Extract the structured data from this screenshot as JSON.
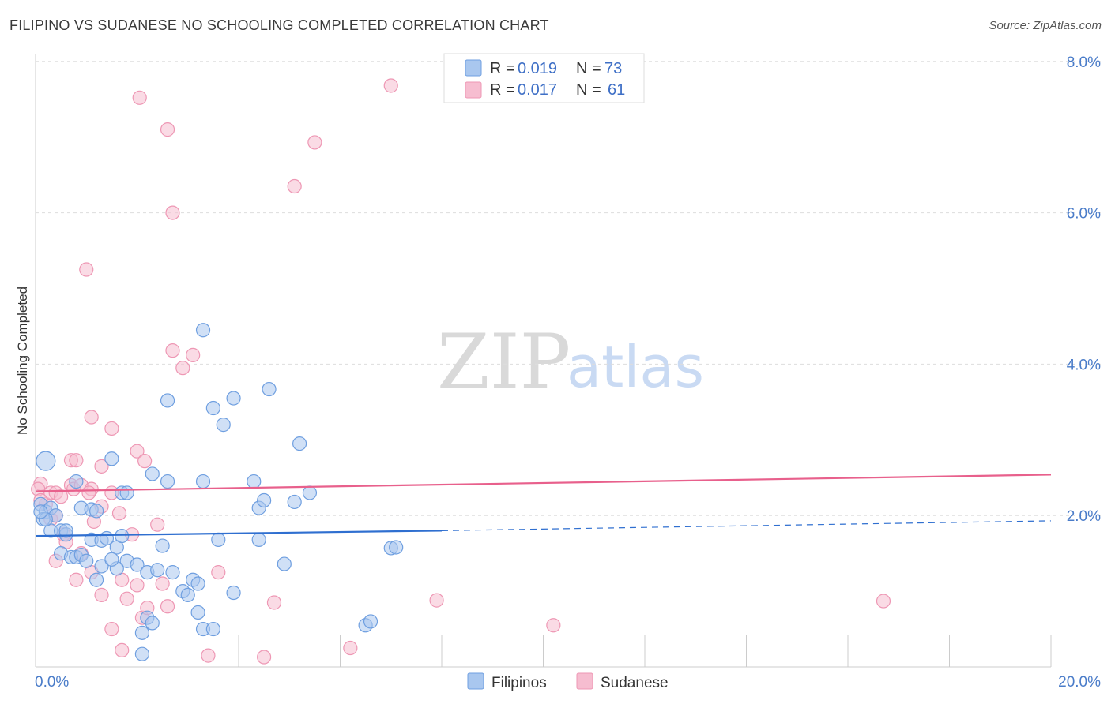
{
  "header": {
    "title": "FILIPINO VS SUDANESE NO SCHOOLING COMPLETED CORRELATION CHART",
    "source": "Source: ZipAtlas.com"
  },
  "watermark": {
    "zip": "ZIP",
    "atlas": "atlas"
  },
  "colors": {
    "filipino_fill": "#a9c7ef",
    "filipino_stroke": "#6f9fe0",
    "filipino_line": "#2f6fd0",
    "sudanese_fill": "#f6bdd0",
    "sudanese_stroke": "#ee97b4",
    "sudanese_line": "#e8608c",
    "grid": "#dddddd",
    "tick_text": "#4a7cc9"
  },
  "legend": {
    "rows": [
      {
        "r_label": "R =",
        "r_value": "0.019",
        "n_label": "N =",
        "n_value": "73"
      },
      {
        "r_label": "R =",
        "r_value": "0.017",
        "n_label": "N =",
        "n_value": "61"
      }
    ]
  },
  "bottom_legend": {
    "series1": "Filipinos",
    "series2": "Sudanese"
  },
  "chart_data": {
    "type": "scatter",
    "title": "FILIPINO VS SUDANESE NO SCHOOLING COMPLETED CORRELATION CHART",
    "xlabel": "",
    "ylabel": "No Schooling Completed",
    "xlim": [
      0,
      20
    ],
    "ylim": [
      0,
      8.4
    ],
    "x_tick_labels": [
      "0.0%",
      "20.0%"
    ],
    "y_ticks": [
      2,
      4,
      6,
      8
    ],
    "y_tick_labels": [
      "2.0%",
      "4.0%",
      "6.0%",
      "8.0%"
    ],
    "series": [
      {
        "name": "Filipinos",
        "R": 0.019,
        "N": 73,
        "trend": {
          "x0": 0,
          "y0": 1.73,
          "x1": 8.0,
          "y1": 1.8,
          "dashed_to_x": 20,
          "dashed_y": 1.93
        },
        "points": [
          [
            0.2,
            2.72
          ],
          [
            0.1,
            2.15
          ],
          [
            0.2,
            2.05
          ],
          [
            0.3,
            2.1
          ],
          [
            0.4,
            2.0
          ],
          [
            0.15,
            1.95
          ],
          [
            0.3,
            1.8
          ],
          [
            0.5,
            1.8
          ],
          [
            0.6,
            1.75
          ],
          [
            0.8,
            2.45
          ],
          [
            0.9,
            2.1
          ],
          [
            1.1,
            2.08
          ],
          [
            1.5,
            2.75
          ],
          [
            1.7,
            2.3
          ],
          [
            1.8,
            2.3
          ],
          [
            2.3,
            2.55
          ],
          [
            2.6,
            2.45
          ],
          [
            3.3,
            2.45
          ],
          [
            3.5,
            3.42
          ],
          [
            3.7,
            3.2
          ],
          [
            3.9,
            3.55
          ],
          [
            4.3,
            2.45
          ],
          [
            4.4,
            2.1
          ],
          [
            4.5,
            2.2
          ],
          [
            4.6,
            3.67
          ],
          [
            5.1,
            2.18
          ],
          [
            5.2,
            2.95
          ],
          [
            5.4,
            2.3
          ],
          [
            3.3,
            4.45
          ],
          [
            2.6,
            3.52
          ],
          [
            0.5,
            1.5
          ],
          [
            0.7,
            1.45
          ],
          [
            0.8,
            1.45
          ],
          [
            0.9,
            1.48
          ],
          [
            1.0,
            1.4
          ],
          [
            1.1,
            1.68
          ],
          [
            1.3,
            1.67
          ],
          [
            1.4,
            1.7
          ],
          [
            1.6,
            1.58
          ],
          [
            1.8,
            1.4
          ],
          [
            2.0,
            1.35
          ],
          [
            2.2,
            1.25
          ],
          [
            2.4,
            1.28
          ],
          [
            2.5,
            1.6
          ],
          [
            2.7,
            1.25
          ],
          [
            2.9,
            1.0
          ],
          [
            3.0,
            0.95
          ],
          [
            3.1,
            1.15
          ],
          [
            3.2,
            1.1
          ],
          [
            3.6,
            1.68
          ],
          [
            3.9,
            0.98
          ],
          [
            4.4,
            1.68
          ],
          [
            4.9,
            1.36
          ],
          [
            1.2,
            1.15
          ],
          [
            1.3,
            1.33
          ],
          [
            1.6,
            1.3
          ],
          [
            1.7,
            1.73
          ],
          [
            2.1,
            0.45
          ],
          [
            2.2,
            0.65
          ],
          [
            2.3,
            0.58
          ],
          [
            3.2,
            0.72
          ],
          [
            3.3,
            0.5
          ],
          [
            3.5,
            0.5
          ],
          [
            2.1,
            0.17
          ],
          [
            6.5,
            0.55
          ],
          [
            6.6,
            0.6
          ],
          [
            7.0,
            1.57
          ],
          [
            7.1,
            1.58
          ],
          [
            1.5,
            1.42
          ],
          [
            0.6,
            1.8
          ],
          [
            0.2,
            1.95
          ],
          [
            1.2,
            2.06
          ],
          [
            0.1,
            2.05
          ]
        ]
      },
      {
        "name": "Sudanese",
        "R": 0.017,
        "N": 61,
        "trend": {
          "x0": 0,
          "y0": 2.32,
          "x1": 20,
          "y1": 2.54
        },
        "points": [
          [
            0.1,
            2.42
          ],
          [
            0.05,
            2.35
          ],
          [
            0.2,
            2.15
          ],
          [
            0.3,
            2.3
          ],
          [
            0.4,
            2.3
          ],
          [
            0.1,
            2.2
          ],
          [
            0.3,
            1.95
          ],
          [
            0.4,
            2.0
          ],
          [
            0.5,
            2.25
          ],
          [
            0.55,
            1.75
          ],
          [
            0.7,
            2.4
          ],
          [
            0.75,
            2.35
          ],
          [
            0.7,
            2.73
          ],
          [
            0.8,
            2.73
          ],
          [
            0.9,
            2.4
          ],
          [
            1.1,
            2.35
          ],
          [
            1.15,
            1.92
          ],
          [
            1.3,
            2.12
          ],
          [
            1.3,
            2.65
          ],
          [
            1.5,
            2.3
          ],
          [
            1.65,
            2.03
          ],
          [
            1.9,
            1.75
          ],
          [
            2.0,
            2.85
          ],
          [
            2.15,
            2.72
          ],
          [
            2.4,
            1.88
          ],
          [
            1.1,
            3.3
          ],
          [
            1.5,
            3.15
          ],
          [
            2.7,
            4.18
          ],
          [
            2.9,
            3.95
          ],
          [
            3.1,
            4.12
          ],
          [
            1.0,
            5.25
          ],
          [
            2.7,
            6.0
          ],
          [
            2.6,
            7.1
          ],
          [
            2.05,
            7.52
          ],
          [
            5.1,
            6.35
          ],
          [
            5.5,
            6.93
          ],
          [
            7.0,
            7.68
          ],
          [
            0.4,
            1.4
          ],
          [
            0.8,
            1.15
          ],
          [
            0.9,
            1.5
          ],
          [
            1.1,
            1.25
          ],
          [
            1.3,
            0.95
          ],
          [
            1.5,
            0.5
          ],
          [
            1.7,
            0.22
          ],
          [
            1.7,
            1.15
          ],
          [
            1.8,
            0.9
          ],
          [
            2.0,
            1.08
          ],
          [
            2.1,
            0.65
          ],
          [
            2.2,
            0.78
          ],
          [
            2.5,
            1.1
          ],
          [
            2.6,
            0.8
          ],
          [
            3.4,
            0.15
          ],
          [
            3.6,
            1.25
          ],
          [
            4.5,
            0.13
          ],
          [
            4.7,
            0.85
          ],
          [
            6.2,
            0.25
          ],
          [
            7.9,
            0.88
          ],
          [
            10.2,
            0.55
          ],
          [
            16.7,
            0.87
          ],
          [
            1.05,
            2.3
          ],
          [
            0.6,
            1.65
          ]
        ]
      }
    ]
  }
}
